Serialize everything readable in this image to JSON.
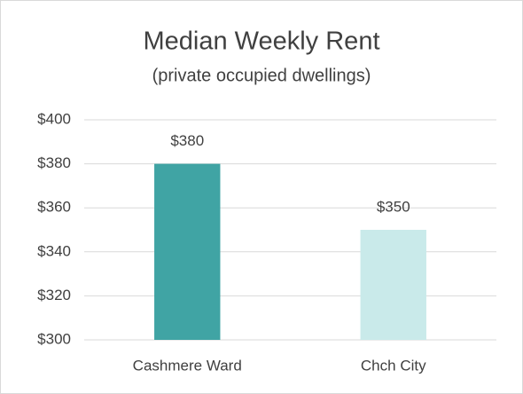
{
  "chart_data": {
    "type": "bar",
    "title": "Median Weekly Rent",
    "subtitle": "(private occupied dwellings)",
    "categories": [
      "Cashmere Ward",
      "Chch City"
    ],
    "values": [
      380,
      350
    ],
    "value_labels": [
      "$380",
      "$350"
    ],
    "colors": [
      "#40a4a4",
      "#c9eaea"
    ],
    "ylim": [
      300,
      400
    ],
    "yticks": [
      {
        "value": 300,
        "label": "$300"
      },
      {
        "value": 320,
        "label": "$320"
      },
      {
        "value": 340,
        "label": "$340"
      },
      {
        "value": 360,
        "label": "$360"
      },
      {
        "value": 380,
        "label": "$380"
      },
      {
        "value": 400,
        "label": "$400"
      }
    ],
    "grid": true
  }
}
